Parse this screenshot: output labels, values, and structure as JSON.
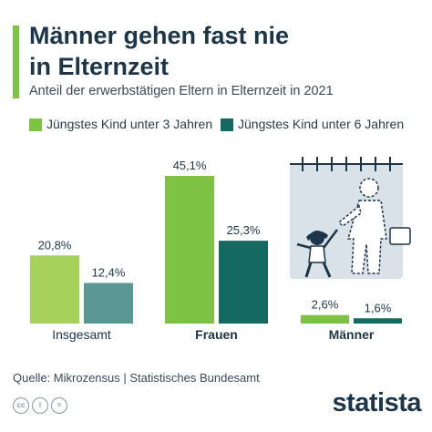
{
  "header": {
    "title_line1": "Männer gehen fast nie",
    "title_line2": "in Elternzeit",
    "subtitle": "Anteil der erwerbstätigen Eltern in Elternzeit in 2021"
  },
  "colors": {
    "accent": "#7dc243",
    "series1": "#a6d15b",
    "series1_strong": "#7dc243",
    "series2": "#5b9893",
    "series2_strong": "#146a60",
    "text_dark": "#1d3548"
  },
  "chart_data": {
    "type": "bar",
    "title": "Männer gehen fast nie in Elternzeit",
    "subtitle": "Anteil der erwerbstätigen Eltern in Elternzeit in 2021",
    "categories": [
      "Insgesamt",
      "Frauen",
      "Männer"
    ],
    "series": [
      {
        "name": "Jüngstes Kind unter 3 Jahren",
        "values": [
          20.8,
          45.1,
          2.6
        ],
        "labels": [
          "20,8%",
          "45,1%",
          "2,6%"
        ]
      },
      {
        "name": "Jüngstes Kind unter 6 Jahren",
        "values": [
          12.4,
          25.3,
          1.6
        ],
        "labels": [
          "12,4%",
          "25,3%",
          "1,6%"
        ]
      }
    ],
    "ylim": [
      0,
      45.1
    ],
    "grid": false,
    "legend_position": "top-left",
    "emphasized_categories": [
      "Frauen",
      "Männer"
    ]
  },
  "footer": {
    "source": "Quelle: Mikrozensus  |  Statistisches Bundesamt",
    "brand": "statista",
    "license_icons": [
      "creative-commons-icon",
      "attribution-icon",
      "no-derivatives-icon"
    ]
  }
}
